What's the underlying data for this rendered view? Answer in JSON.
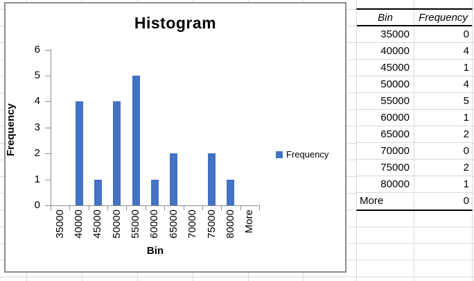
{
  "chart_data": {
    "type": "bar",
    "title": "Histogram",
    "categories": [
      "35000",
      "40000",
      "45000",
      "50000",
      "55000",
      "60000",
      "65000",
      "70000",
      "75000",
      "80000",
      "More"
    ],
    "values": [
      0,
      4,
      1,
      4,
      5,
      1,
      2,
      0,
      2,
      1,
      0
    ],
    "xlabel": "Bin",
    "ylabel": "Frequency",
    "ylim": [
      0,
      6
    ],
    "y_ticks": [
      0,
      1,
      2,
      3,
      4,
      5,
      6
    ],
    "legend": "Frequency",
    "legend_position": "right",
    "grid": false,
    "bar_color": "#4472C4"
  },
  "table": {
    "headers": [
      "Bin",
      "Frequency"
    ],
    "rows": [
      [
        "35000",
        "0"
      ],
      [
        "40000",
        "4"
      ],
      [
        "45000",
        "1"
      ],
      [
        "50000",
        "4"
      ],
      [
        "55000",
        "5"
      ],
      [
        "60000",
        "1"
      ],
      [
        "65000",
        "2"
      ],
      [
        "70000",
        "0"
      ],
      [
        "75000",
        "2"
      ],
      [
        "80000",
        "1"
      ],
      [
        "More",
        "0"
      ]
    ]
  },
  "colors": {
    "bar_blue": "#4472C4",
    "sheet_gridline": "#D9D9D9",
    "chart_border": "#8C8C8C",
    "axis_line": "#8C8C8C",
    "table_border": "#000000"
  }
}
